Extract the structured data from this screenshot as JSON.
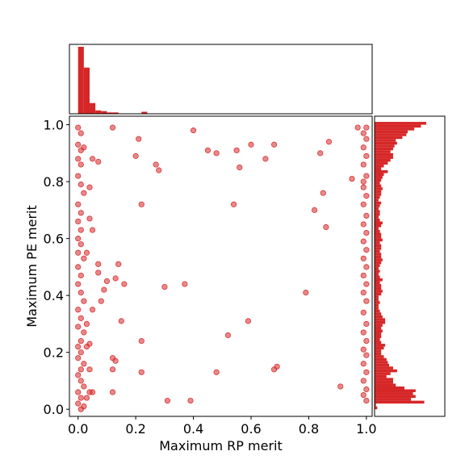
{
  "chart_data": {
    "type": "scatter",
    "title": "",
    "xlabel": "Maximum RP merit",
    "ylabel": "Maximum PE merit",
    "xlim": [
      -0.03,
      1.02
    ],
    "ylim": [
      -0.025,
      1.03
    ],
    "x_ticks": [
      "0.0",
      "0.2",
      "0.4",
      "0.6",
      "0.8",
      "1.0"
    ],
    "y_ticks": [
      "0.0",
      "0.2",
      "0.4",
      "0.6",
      "0.8",
      "1.0"
    ],
    "grid": false,
    "colors": {
      "marker": "#d62728",
      "hist": "#d62728"
    },
    "marginal_x_histogram": {
      "bin_width": 0.02,
      "relative_heights": [
        1.0,
        0.69,
        0.16,
        0.05,
        0.04,
        0.02,
        0.02,
        0.0,
        0.0,
        0.0,
        0.0,
        0.03,
        0.0,
        0.0,
        0.0,
        0.0,
        0.0,
        0.0,
        0.0,
        0.0,
        0.0,
        0.0,
        0.0,
        0.0,
        0.0,
        0.0,
        0.0,
        0.0,
        0.0,
        0.0,
        0.0,
        0.0,
        0.0,
        0.0,
        0.0,
        0.0,
        0.0,
        0.0,
        0.0,
        0.0,
        0.0,
        0.0,
        0.0,
        0.0,
        0.0,
        0.0,
        0.0,
        0.0,
        0.0,
        0.0,
        0.0,
        0.0,
        0.0,
        0.0,
        0.0,
        0.0,
        0.0,
        0.0,
        0.0,
        0.0,
        0.0,
        0.0,
        0.0,
        0.0,
        0.0,
        0.0,
        0.0,
        0.0,
        0.0,
        0.0,
        0.0,
        0.0,
        0.0,
        0.0,
        0.0,
        0.0,
        0.0,
        0.0,
        0.0,
        0.0,
        0.0,
        0.0,
        0.0,
        0.0,
        0.0,
        0.0,
        0.0,
        0.0,
        0.0,
        0.0,
        0.0,
        0.0,
        0.0,
        0.0,
        0.0,
        0.0,
        0.0,
        0.0,
        0.03,
        0.69
      ]
    },
    "marginal_y_histogram": {
      "bin_width": 0.01,
      "relative_lengths": [
        0.04,
        0.02,
        0.75,
        0.55,
        0.62,
        0.58,
        0.62,
        0.45,
        0.32,
        0.28,
        0.28,
        0.18,
        0.24,
        0.34,
        0.28,
        0.22,
        0.2,
        0.18,
        0.14,
        0.1,
        0.1,
        0.14,
        0.16,
        0.1,
        0.08,
        0.1,
        0.1,
        0.12,
        0.1,
        0.12,
        0.16,
        0.16,
        0.12,
        0.1,
        0.08,
        0.06,
        0.06,
        0.08,
        0.06,
        0.06,
        0.1,
        0.12,
        0.1,
        0.1,
        0.08,
        0.12,
        0.08,
        0.06,
        0.08,
        0.06,
        0.08,
        0.1,
        0.12,
        0.1,
        0.1,
        0.08,
        0.1,
        0.1,
        0.08,
        0.12,
        0.1,
        0.1,
        0.08,
        0.06,
        0.1,
        0.12,
        0.08,
        0.06,
        0.08,
        0.08,
        0.06,
        0.08,
        0.1,
        0.06,
        0.08,
        0.1,
        0.1,
        0.12,
        0.1,
        0.08,
        0.1,
        0.12,
        0.14,
        0.2,
        0.1,
        0.14,
        0.2,
        0.24,
        0.28,
        0.28,
        0.24,
        0.28,
        0.3,
        0.34,
        0.32,
        0.42,
        0.48,
        0.5,
        0.6,
        0.7,
        0.78
      ]
    },
    "points": [
      {
        "x": 0.0,
        "y": 0.99
      },
      {
        "x": 0.01,
        "y": 0.97
      },
      {
        "x": 0.0,
        "y": 0.93
      },
      {
        "x": 0.01,
        "y": 0.91
      },
      {
        "x": 0.02,
        "y": 0.92
      },
      {
        "x": 0.0,
        "y": 0.88
      },
      {
        "x": 0.01,
        "y": 0.86
      },
      {
        "x": 0.0,
        "y": 0.82
      },
      {
        "x": 0.01,
        "y": 0.79
      },
      {
        "x": 0.02,
        "y": 0.76
      },
      {
        "x": 0.0,
        "y": 0.72
      },
      {
        "x": 0.01,
        "y": 0.69
      },
      {
        "x": 0.0,
        "y": 0.66
      },
      {
        "x": 0.01,
        "y": 0.63
      },
      {
        "x": 0.0,
        "y": 0.6
      },
      {
        "x": 0.01,
        "y": 0.58
      },
      {
        "x": 0.0,
        "y": 0.55
      },
      {
        "x": 0.02,
        "y": 0.53
      },
      {
        "x": 0.0,
        "y": 0.5
      },
      {
        "x": 0.01,
        "y": 0.47
      },
      {
        "x": 0.0,
        "y": 0.44
      },
      {
        "x": 0.01,
        "y": 0.41
      },
      {
        "x": 0.02,
        "y": 0.38
      },
      {
        "x": 0.0,
        "y": 0.35
      },
      {
        "x": 0.01,
        "y": 0.32
      },
      {
        "x": 0.0,
        "y": 0.29
      },
      {
        "x": 0.02,
        "y": 0.27
      },
      {
        "x": 0.01,
        "y": 0.24
      },
      {
        "x": 0.0,
        "y": 0.22
      },
      {
        "x": 0.01,
        "y": 0.2
      },
      {
        "x": 0.0,
        "y": 0.18
      },
      {
        "x": 0.02,
        "y": 0.16
      },
      {
        "x": 0.01,
        "y": 0.14
      },
      {
        "x": 0.0,
        "y": 0.12
      },
      {
        "x": 0.01,
        "y": 0.1
      },
      {
        "x": 0.02,
        "y": 0.08
      },
      {
        "x": 0.0,
        "y": 0.06
      },
      {
        "x": 0.01,
        "y": 0.04
      },
      {
        "x": 0.0,
        "y": 0.02
      },
      {
        "x": 0.01,
        "y": 0.0
      },
      {
        "x": 0.03,
        "y": 0.55
      },
      {
        "x": 0.03,
        "y": 0.3
      },
      {
        "x": 0.03,
        "y": 0.22
      },
      {
        "x": 0.04,
        "y": 0.14
      },
      {
        "x": 0.04,
        "y": 0.06
      },
      {
        "x": 0.05,
        "y": 0.88
      },
      {
        "x": 0.05,
        "y": 0.63
      },
      {
        "x": 0.05,
        "y": 0.35
      },
      {
        "x": 0.04,
        "y": 0.23
      },
      {
        "x": 0.05,
        "y": 0.06
      },
      {
        "x": 0.07,
        "y": 0.87
      },
      {
        "x": 0.07,
        "y": 0.51
      },
      {
        "x": 0.07,
        "y": 0.48
      },
      {
        "x": 0.08,
        "y": 0.38
      },
      {
        "x": 0.09,
        "y": 0.42
      },
      {
        "x": 0.1,
        "y": 0.45
      },
      {
        "x": 0.04,
        "y": 0.78
      },
      {
        "x": 0.04,
        "y": 0.67
      },
      {
        "x": 0.03,
        "y": 0.04
      },
      {
        "x": 0.02,
        "y": 0.01
      },
      {
        "x": 0.12,
        "y": 0.99
      },
      {
        "x": 0.12,
        "y": 0.18
      },
      {
        "x": 0.12,
        "y": 0.14
      },
      {
        "x": 0.13,
        "y": 0.17
      },
      {
        "x": 0.12,
        "y": 0.06
      },
      {
        "x": 0.14,
        "y": 0.51
      },
      {
        "x": 0.13,
        "y": 0.46
      },
      {
        "x": 0.15,
        "y": 0.31
      },
      {
        "x": 0.16,
        "y": 0.44
      },
      {
        "x": 0.2,
        "y": 0.89
      },
      {
        "x": 0.21,
        "y": 0.95
      },
      {
        "x": 0.22,
        "y": 0.72
      },
      {
        "x": 0.22,
        "y": 0.24
      },
      {
        "x": 0.22,
        "y": 0.13
      },
      {
        "x": 0.27,
        "y": 0.86
      },
      {
        "x": 0.28,
        "y": 0.84
      },
      {
        "x": 0.3,
        "y": 0.43
      },
      {
        "x": 0.31,
        "y": 0.03
      },
      {
        "x": 0.37,
        "y": 0.44
      },
      {
        "x": 0.39,
        "y": 0.03
      },
      {
        "x": 0.4,
        "y": 0.98
      },
      {
        "x": 0.45,
        "y": 0.91
      },
      {
        "x": 0.48,
        "y": 0.9
      },
      {
        "x": 0.48,
        "y": 0.13
      },
      {
        "x": 0.52,
        "y": 0.26
      },
      {
        "x": 0.54,
        "y": 0.72
      },
      {
        "x": 0.55,
        "y": 0.91
      },
      {
        "x": 0.56,
        "y": 0.85
      },
      {
        "x": 0.59,
        "y": 0.31
      },
      {
        "x": 0.6,
        "y": 0.93
      },
      {
        "x": 0.65,
        "y": 0.88
      },
      {
        "x": 0.68,
        "y": 0.93
      },
      {
        "x": 0.68,
        "y": 0.14
      },
      {
        "x": 0.69,
        "y": 0.15
      },
      {
        "x": 0.79,
        "y": 0.41
      },
      {
        "x": 0.82,
        "y": 0.7
      },
      {
        "x": 0.84,
        "y": 0.9
      },
      {
        "x": 0.85,
        "y": 0.76
      },
      {
        "x": 0.86,
        "y": 0.64
      },
      {
        "x": 0.87,
        "y": 0.94
      },
      {
        "x": 0.91,
        "y": 0.08
      },
      {
        "x": 0.95,
        "y": 0.81
      },
      {
        "x": 0.97,
        "y": 0.99
      },
      {
        "x": 0.99,
        "y": 0.8
      },
      {
        "x": 1.0,
        "y": 0.99
      },
      {
        "x": 0.99,
        "y": 0.97
      },
      {
        "x": 1.0,
        "y": 0.95
      },
      {
        "x": 0.99,
        "y": 0.92
      },
      {
        "x": 1.0,
        "y": 0.89
      },
      {
        "x": 0.99,
        "y": 0.86
      },
      {
        "x": 1.0,
        "y": 0.82
      },
      {
        "x": 0.99,
        "y": 0.78
      },
      {
        "x": 1.0,
        "y": 0.75
      },
      {
        "x": 0.99,
        "y": 0.72
      },
      {
        "x": 1.0,
        "y": 0.68
      },
      {
        "x": 0.99,
        "y": 0.65
      },
      {
        "x": 1.0,
        "y": 0.62
      },
      {
        "x": 0.99,
        "y": 0.59
      },
      {
        "x": 1.0,
        "y": 0.56
      },
      {
        "x": 0.99,
        "y": 0.53
      },
      {
        "x": 1.0,
        "y": 0.5
      },
      {
        "x": 0.99,
        "y": 0.47
      },
      {
        "x": 1.0,
        "y": 0.44
      },
      {
        "x": 0.99,
        "y": 0.41
      },
      {
        "x": 1.0,
        "y": 0.38
      },
      {
        "x": 0.99,
        "y": 0.34
      },
      {
        "x": 1.0,
        "y": 0.3
      },
      {
        "x": 0.99,
        "y": 0.27
      },
      {
        "x": 1.0,
        "y": 0.24
      },
      {
        "x": 0.99,
        "y": 0.21
      },
      {
        "x": 1.0,
        "y": 0.19
      },
      {
        "x": 0.99,
        "y": 0.16
      },
      {
        "x": 1.0,
        "y": 0.13
      },
      {
        "x": 0.99,
        "y": 0.1
      },
      {
        "x": 1.0,
        "y": 0.07
      },
      {
        "x": 0.99,
        "y": 0.05
      },
      {
        "x": 1.0,
        "y": 0.03
      }
    ]
  }
}
